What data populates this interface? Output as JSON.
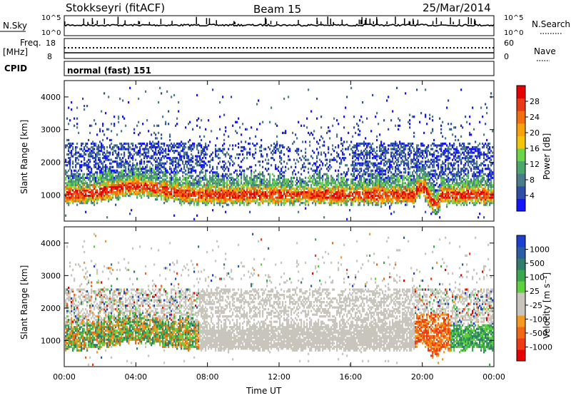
{
  "header": {
    "station": "Stokkseyri (fitACF)",
    "beam": "Beam 15",
    "date": "25/Mar/2014"
  },
  "side_labels": {
    "nsky": "N.Sky",
    "nsearch": "N.Search",
    "freq_line1": "Freq.",
    "freq_line2": "[MHz]",
    "nave": "Nave",
    "cpid": "CPID",
    "cpid_value": "normal (fast) 151"
  },
  "colors": {
    "power": [
      "#1414ff",
      "#2f4fa6",
      "#4a7c8a",
      "#4ca86a",
      "#6bd44a",
      "#f2c40a",
      "#f7a10c",
      "#f26f10",
      "#e83a14",
      "#e60000"
    ],
    "velocity": [
      "#e60000",
      "#f03a14",
      "#f06a16",
      "#f49a20",
      "#c8c5bd",
      "#c8c5bd",
      "#5fd040",
      "#3ba850",
      "#2f7d6a",
      "#2b5da0",
      "#1f3fd0"
    ]
  },
  "chart_data": [
    {
      "type": "line",
      "name": "noise-panel",
      "ylabel_left": "N.Sky",
      "ylabel_right": "N.Search",
      "left_ticks": [
        "10^5",
        "10^0"
      ],
      "right_ticks": [
        "10^5",
        "10^0"
      ]
    },
    {
      "type": "line",
      "name": "frequency-panel",
      "ylabel_left": "Freq. [MHz]",
      "ylabel_right": "Nave",
      "left_ticks": [
        18,
        8
      ],
      "right_ticks": [
        60,
        0
      ]
    },
    {
      "type": "heatmap",
      "name": "power-panel",
      "ylabel": "Slant Range [km]",
      "y_ticks": [
        1000,
        2000,
        3000,
        4000
      ],
      "ylim": [
        200,
        4500
      ],
      "colorbar_label": "Power [dB]",
      "colorbar_ticks": [
        4,
        8,
        12,
        16,
        20,
        24,
        28
      ]
    },
    {
      "type": "heatmap",
      "name": "velocity-panel",
      "ylabel": "Slant Range [km]",
      "y_ticks": [
        1000,
        2000,
        3000,
        4000
      ],
      "ylim": [
        200,
        4500
      ],
      "colorbar_label": "Velocity [m s⁻¹]",
      "colorbar_ticks": [
        1000,
        500,
        100,
        25,
        -25,
        -100,
        -500,
        -1000
      ]
    }
  ],
  "x_axis": {
    "label": "Time UT",
    "ticks": [
      "00:00",
      "04:00",
      "08:00",
      "12:00",
      "16:00",
      "20:00",
      "00:00"
    ]
  }
}
